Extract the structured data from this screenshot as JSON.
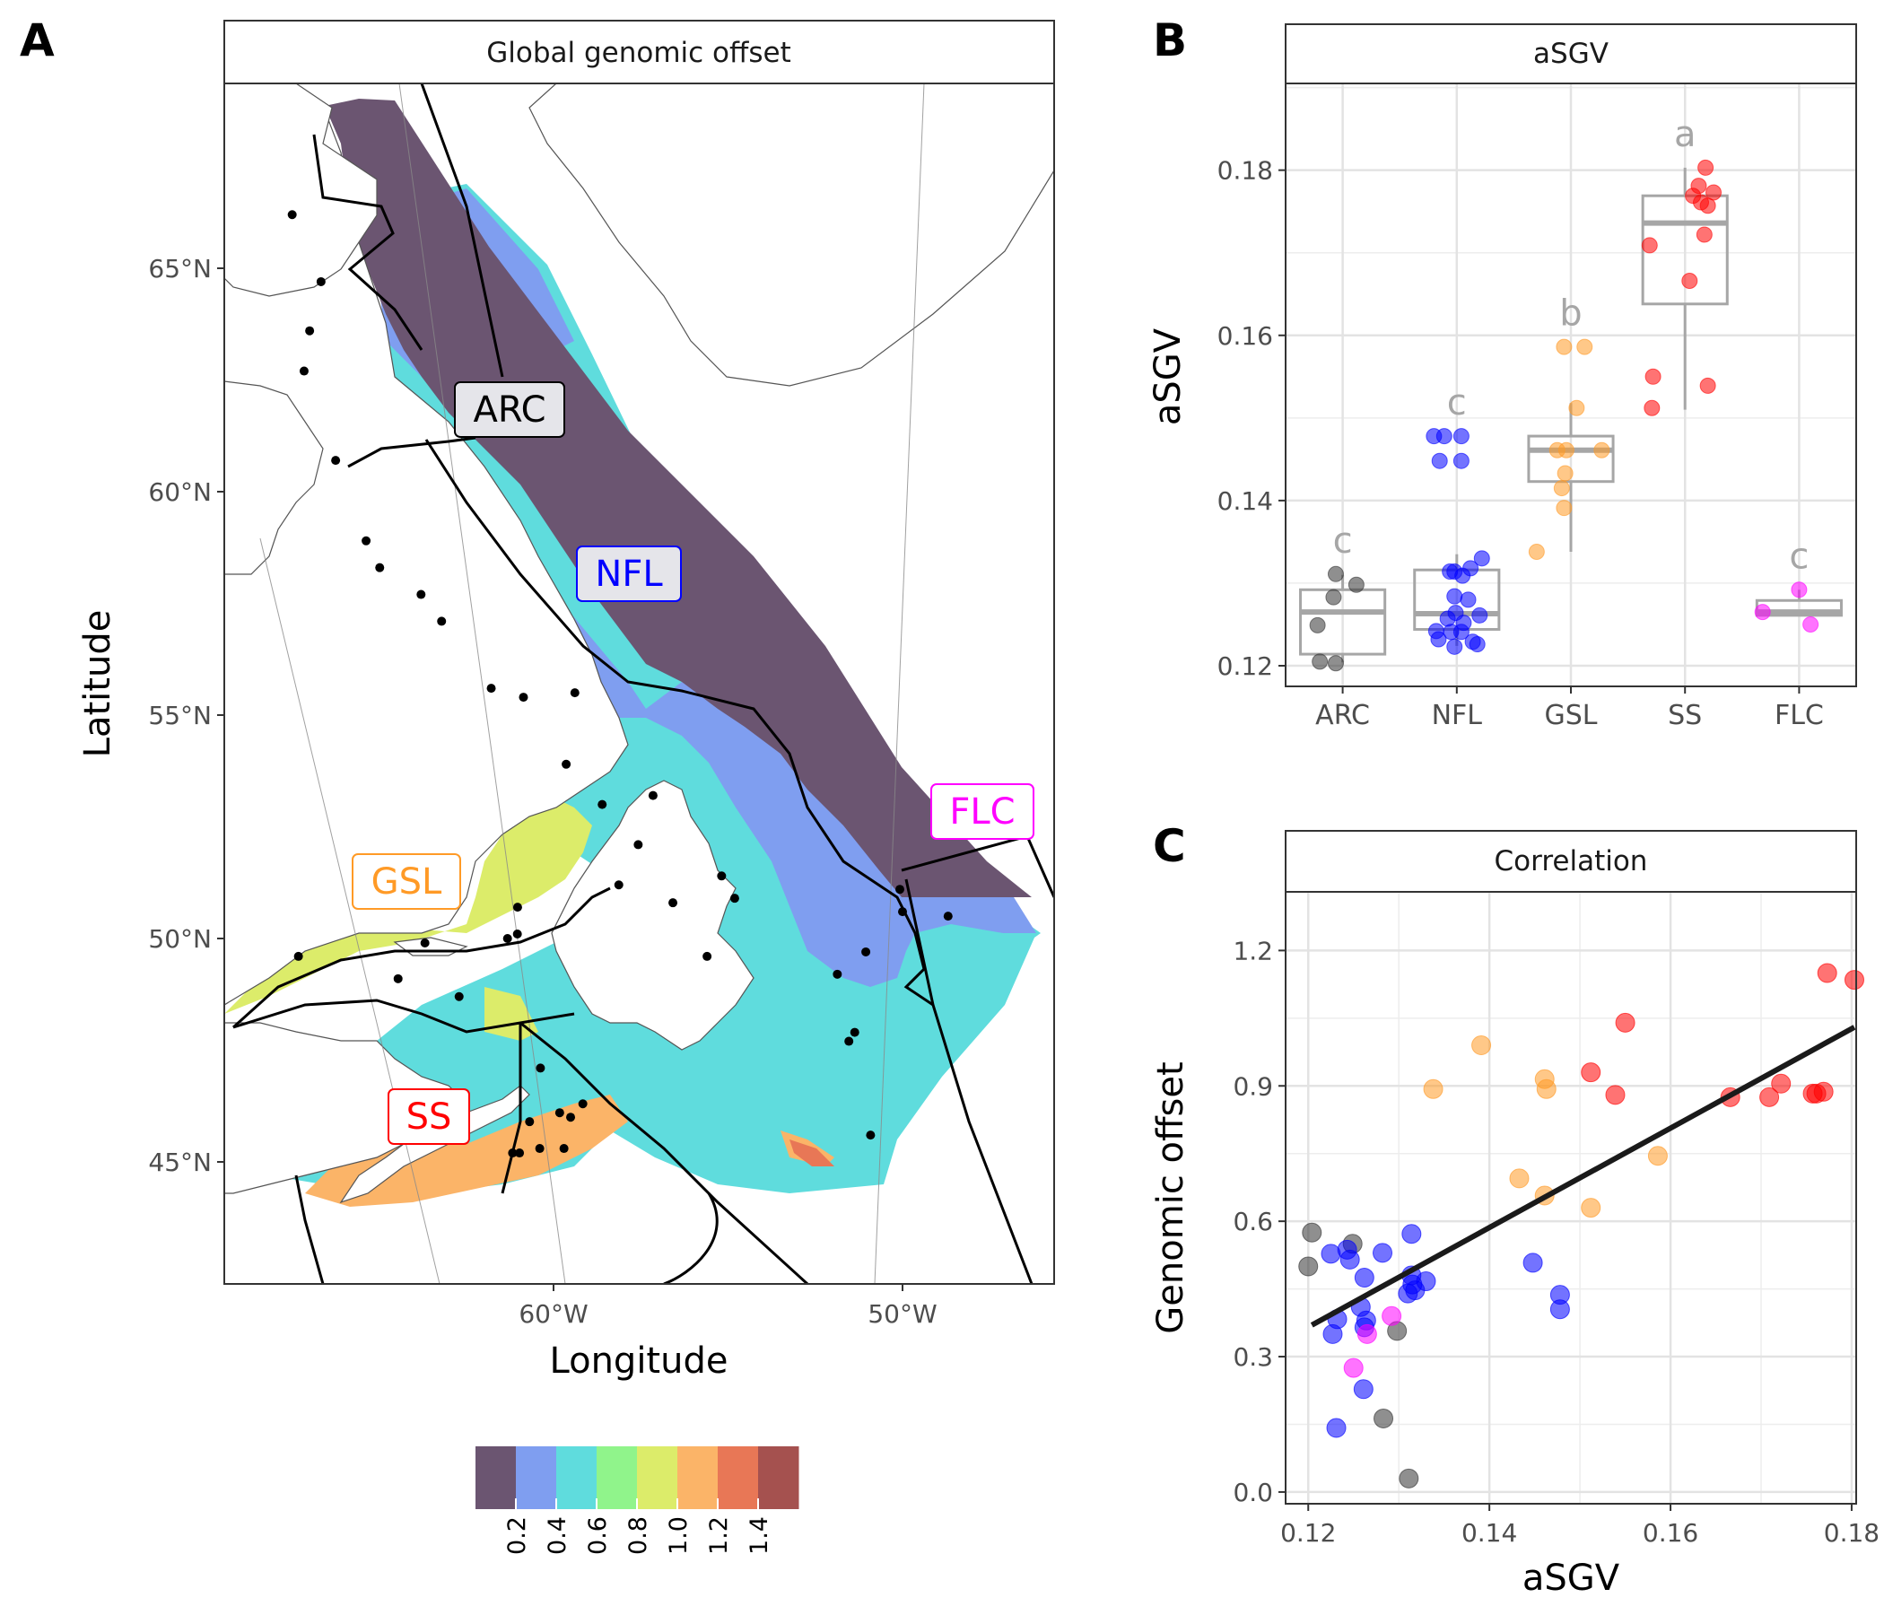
{
  "panel_letters": {
    "a": "A",
    "b": "B",
    "c": "C"
  },
  "colors": {
    "ARC": "#333333",
    "NFL": "#0000ff",
    "GSL": "#ff9a26",
    "SS": "#ff0000",
    "FLC": "#ff00ff",
    "box": "#a6a6a6",
    "ocean_classes": [
      "#6b5571",
      "#7f9ef0",
      "#5fdcdd",
      "#90f48b",
      "#dcec6a",
      "#fbb468",
      "#e87756",
      "#a5514f"
    ]
  },
  "chart_data": [
    {
      "type": "heatmap",
      "panel": "A",
      "title": "Global genomic offset",
      "xlabel": "Longitude",
      "ylabel": "Latitude",
      "xticks": [
        "60°W",
        "50°W"
      ],
      "yticks": [
        "65°N",
        "60°N",
        "55°N",
        "50°N",
        "45°N"
      ],
      "xlim_deg": [
        -69.3,
        -45.8
      ],
      "ylim_deg": [
        42.4,
        69.8
      ],
      "regions": [
        "ARC",
        "NFL",
        "GSL",
        "SS",
        "FLC"
      ],
      "colorbar": {
        "ticks": [
          "0.2",
          "0.4",
          "0.6",
          "0.8",
          "1.0",
          "1.2",
          "1.4"
        ],
        "range": [
          0,
          1.6
        ]
      },
      "sampling_sites_lonlat": [
        [
          -64.2,
          66.2
        ],
        [
          -63.6,
          64.7
        ],
        [
          -64.1,
          63.6
        ],
        [
          -64.4,
          62.7
        ],
        [
          -67.8,
          61.4
        ],
        [
          -67.2,
          60.8
        ],
        [
          -63.8,
          60.7
        ],
        [
          -63.2,
          58.9
        ],
        [
          -62.9,
          58.3
        ],
        [
          -61.8,
          57.7
        ],
        [
          -61.3,
          57.1
        ],
        [
          -60.1,
          55.6
        ],
        [
          -59.2,
          55.4
        ],
        [
          -57.7,
          55.5
        ],
        [
          -58.2,
          53.9
        ],
        [
          -57.3,
          53.0
        ],
        [
          -55.8,
          53.2
        ],
        [
          -56.4,
          52.1
        ],
        [
          -57.1,
          51.2
        ],
        [
          -55.6,
          50.8
        ],
        [
          -54.1,
          51.4
        ],
        [
          -53.8,
          50.9
        ],
        [
          -54.8,
          49.6
        ],
        [
          -50.2,
          49.7
        ],
        [
          -49.0,
          51.1
        ],
        [
          -49.0,
          50.6
        ],
        [
          -47.7,
          50.5
        ],
        [
          -60.1,
          50.7
        ],
        [
          -60.2,
          50.1
        ],
        [
          -60.5,
          50.0
        ],
        [
          -62.9,
          49.9
        ],
        [
          -66.6,
          49.6
        ],
        [
          -63.8,
          49.1
        ],
        [
          -62.1,
          48.7
        ],
        [
          -60.0,
          47.1
        ],
        [
          -59.6,
          46.1
        ],
        [
          -58.9,
          46.3
        ],
        [
          -59.3,
          46.0
        ],
        [
          -60.5,
          45.9
        ],
        [
          -60.9,
          45.2
        ],
        [
          -61.1,
          45.2
        ],
        [
          -60.3,
          45.3
        ],
        [
          -59.6,
          45.3
        ],
        [
          -50.7,
          45.6
        ],
        [
          -51.0,
          47.7
        ],
        [
          -50.8,
          47.9
        ],
        [
          -51.1,
          49.2
        ]
      ]
    },
    {
      "type": "box",
      "panel": "B",
      "title": "aSGV",
      "xlabel": "",
      "ylabel": "aSGV",
      "categories": [
        "ARC",
        "NFL",
        "GSL",
        "SS",
        "FLC"
      ],
      "letters": [
        "c",
        "c",
        "b",
        "a",
        "c"
      ],
      "ylim": [
        0.1175,
        0.1905
      ],
      "yticks": [
        0.12,
        0.14,
        0.16,
        0.18
      ],
      "boxes": [
        {
          "q1": 0.1214,
          "median": 0.1265,
          "q3": 0.1292,
          "wlo": 0.1204,
          "whi": 0.131
        },
        {
          "q1": 0.1244,
          "median": 0.1263,
          "q3": 0.1316,
          "wlo": 0.1224,
          "whi": 0.1335
        },
        {
          "q1": 0.1423,
          "median": 0.1461,
          "q3": 0.1478,
          "wlo": 0.1338,
          "whi": 0.1518
        },
        {
          "q1": 0.1638,
          "median": 0.1736,
          "q3": 0.1769,
          "wlo": 0.151,
          "whi": 0.1803
        },
        {
          "q1": 0.1261,
          "median": 0.1265,
          "q3": 0.1279,
          "wlo": 0.1261,
          "whi": 0.1292
        }
      ],
      "points": [
        {
          "c": "ARC",
          "dx": -0.06,
          "y": 0.1311
        },
        {
          "c": "ARC",
          "dx": 0.12,
          "y": 0.1298
        },
        {
          "c": "ARC",
          "dx": -0.08,
          "y": 0.1283
        },
        {
          "c": "ARC",
          "dx": -0.22,
          "y": 0.1249
        },
        {
          "c": "ARC",
          "dx": -0.2,
          "y": 0.1205
        },
        {
          "c": "ARC",
          "dx": -0.06,
          "y": 0.1203
        },
        {
          "c": "NFL",
          "dx": -0.2,
          "y": 0.1478
        },
        {
          "c": "NFL",
          "dx": -0.11,
          "y": 0.1478
        },
        {
          "c": "NFL",
          "dx": 0.04,
          "y": 0.1478
        },
        {
          "c": "NFL",
          "dx": -0.15,
          "y": 0.1448
        },
        {
          "c": "NFL",
          "dx": 0.04,
          "y": 0.1448
        },
        {
          "c": "NFL",
          "dx": 0.22,
          "y": 0.133
        },
        {
          "c": "NFL",
          "dx": 0.12,
          "y": 0.1318
        },
        {
          "c": "NFL",
          "dx": -0.06,
          "y": 0.1314
        },
        {
          "c": "NFL",
          "dx": -0.02,
          "y": 0.1314
        },
        {
          "c": "NFL",
          "dx": 0.05,
          "y": 0.1309
        },
        {
          "c": "NFL",
          "dx": -0.02,
          "y": 0.1284
        },
        {
          "c": "NFL",
          "dx": 0.1,
          "y": 0.128
        },
        {
          "c": "NFL",
          "dx": -0.01,
          "y": 0.1264
        },
        {
          "c": "NFL",
          "dx": 0.2,
          "y": 0.1261
        },
        {
          "c": "NFL",
          "dx": -0.08,
          "y": 0.1257
        },
        {
          "c": "NFL",
          "dx": 0.06,
          "y": 0.1252
        },
        {
          "c": "NFL",
          "dx": -0.18,
          "y": 0.1242
        },
        {
          "c": "NFL",
          "dx": -0.05,
          "y": 0.1241
        },
        {
          "c": "NFL",
          "dx": 0.04,
          "y": 0.1241
        },
        {
          "c": "NFL",
          "dx": -0.16,
          "y": 0.1232
        },
        {
          "c": "NFL",
          "dx": 0.14,
          "y": 0.1229
        },
        {
          "c": "NFL",
          "dx": 0.18,
          "y": 0.1226
        },
        {
          "c": "NFL",
          "dx": -0.02,
          "y": 0.1223
        },
        {
          "c": "GSL",
          "dx": -0.06,
          "y": 0.1586
        },
        {
          "c": "GSL",
          "dx": 0.12,
          "y": 0.1586
        },
        {
          "c": "GSL",
          "dx": 0.05,
          "y": 0.1512
        },
        {
          "c": "GSL",
          "dx": -0.12,
          "y": 0.1461
        },
        {
          "c": "GSL",
          "dx": -0.04,
          "y": 0.1461
        },
        {
          "c": "GSL",
          "dx": 0.27,
          "y": 0.1461
        },
        {
          "c": "GSL",
          "dx": -0.05,
          "y": 0.1433
        },
        {
          "c": "GSL",
          "dx": -0.08,
          "y": 0.1415
        },
        {
          "c": "GSL",
          "dx": -0.06,
          "y": 0.1391
        },
        {
          "c": "GSL",
          "dx": -0.3,
          "y": 0.1338
        },
        {
          "c": "SS",
          "dx": 0.18,
          "y": 0.1803
        },
        {
          "c": "SS",
          "dx": 0.12,
          "y": 0.1781
        },
        {
          "c": "SS",
          "dx": 0.25,
          "y": 0.1773
        },
        {
          "c": "SS",
          "dx": 0.07,
          "y": 0.1769
        },
        {
          "c": "SS",
          "dx": 0.14,
          "y": 0.1761
        },
        {
          "c": "SS",
          "dx": 0.2,
          "y": 0.1757
        },
        {
          "c": "SS",
          "dx": 0.17,
          "y": 0.1722
        },
        {
          "c": "SS",
          "dx": -0.31,
          "y": 0.1709
        },
        {
          "c": "SS",
          "dx": 0.04,
          "y": 0.1666
        },
        {
          "c": "SS",
          "dx": -0.28,
          "y": 0.155
        },
        {
          "c": "SS",
          "dx": 0.2,
          "y": 0.1539
        },
        {
          "c": "SS",
          "dx": -0.29,
          "y": 0.1512
        },
        {
          "c": "FLC",
          "dx": 0.0,
          "y": 0.1292
        },
        {
          "c": "FLC",
          "dx": -0.32,
          "y": 0.1265
        },
        {
          "c": "FLC",
          "dx": 0.1,
          "y": 0.125
        }
      ]
    },
    {
      "type": "scatter",
      "panel": "C",
      "title": "Correlation",
      "xlabel": "aSGV",
      "ylabel": "Genomic offset",
      "xlim": [
        0.1175,
        0.1805
      ],
      "ylim": [
        -0.026,
        1.33
      ],
      "xticks": [
        0.12,
        0.14,
        0.16,
        0.18
      ],
      "yticks": [
        0.0,
        0.3,
        0.6,
        0.9,
        1.2
      ],
      "regression": {
        "x1": 0.1204,
        "y1": 0.37,
        "x2": 0.1803,
        "y2": 1.03
      },
      "points": [
        {
          "g": "ARC",
          "x": 0.1204,
          "y": 0.575
        },
        {
          "g": "ARC",
          "x": 0.12,
          "y": 0.5
        },
        {
          "g": "ARC",
          "x": 0.1249,
          "y": 0.55
        },
        {
          "g": "ARC",
          "x": 0.1298,
          "y": 0.357
        },
        {
          "g": "ARC",
          "x": 0.1283,
          "y": 0.163
        },
        {
          "g": "ARC",
          "x": 0.1311,
          "y": 0.03
        },
        {
          "g": "NFL",
          "x": 0.1225,
          "y": 0.528
        },
        {
          "g": "NFL",
          "x": 0.1243,
          "y": 0.537
        },
        {
          "g": "NFL",
          "x": 0.1246,
          "y": 0.515
        },
        {
          "g": "NFL",
          "x": 0.1282,
          "y": 0.53
        },
        {
          "g": "NFL",
          "x": 0.1314,
          "y": 0.572
        },
        {
          "g": "NFL",
          "x": 0.1262,
          "y": 0.475
        },
        {
          "g": "NFL",
          "x": 0.1314,
          "y": 0.48
        },
        {
          "g": "NFL",
          "x": 0.1315,
          "y": 0.46
        },
        {
          "g": "NFL",
          "x": 0.133,
          "y": 0.467
        },
        {
          "g": "NFL",
          "x": 0.131,
          "y": 0.44
        },
        {
          "g": "NFL",
          "x": 0.1318,
          "y": 0.447
        },
        {
          "g": "NFL",
          "x": 0.1232,
          "y": 0.383
        },
        {
          "g": "NFL",
          "x": 0.1258,
          "y": 0.41
        },
        {
          "g": "NFL",
          "x": 0.1264,
          "y": 0.38
        },
        {
          "g": "NFL",
          "x": 0.1262,
          "y": 0.365
        },
        {
          "g": "NFL",
          "x": 0.1227,
          "y": 0.35
        },
        {
          "g": "NFL",
          "x": 0.1261,
          "y": 0.228
        },
        {
          "g": "NFL",
          "x": 0.1231,
          "y": 0.142
        },
        {
          "g": "NFL",
          "x": 0.1448,
          "y": 0.508
        },
        {
          "g": "NFL",
          "x": 0.1478,
          "y": 0.437
        },
        {
          "g": "NFL",
          "x": 0.1478,
          "y": 0.405
        },
        {
          "g": "GSL",
          "x": 0.1391,
          "y": 0.99
        },
        {
          "g": "GSL",
          "x": 0.1461,
          "y": 0.915
        },
        {
          "g": "GSL",
          "x": 0.1463,
          "y": 0.893
        },
        {
          "g": "GSL",
          "x": 0.1338,
          "y": 0.893
        },
        {
          "g": "GSL",
          "x": 0.1586,
          "y": 0.745
        },
        {
          "g": "GSL",
          "x": 0.1433,
          "y": 0.695
        },
        {
          "g": "GSL",
          "x": 0.1461,
          "y": 0.657
        },
        {
          "g": "GSL",
          "x": 0.1512,
          "y": 0.63
        },
        {
          "g": "SS",
          "x": 0.155,
          "y": 1.04
        },
        {
          "g": "SS",
          "x": 0.1512,
          "y": 0.93
        },
        {
          "g": "SS",
          "x": 0.1539,
          "y": 0.88
        },
        {
          "g": "SS",
          "x": 0.1666,
          "y": 0.875
        },
        {
          "g": "SS",
          "x": 0.1709,
          "y": 0.875
        },
        {
          "g": "SS",
          "x": 0.1722,
          "y": 0.905
        },
        {
          "g": "SS",
          "x": 0.1773,
          "y": 1.15
        },
        {
          "g": "SS",
          "x": 0.1803,
          "y": 1.135
        },
        {
          "g": "SS",
          "x": 0.1761,
          "y": 0.883
        },
        {
          "g": "SS",
          "x": 0.1769,
          "y": 0.887
        },
        {
          "g": "SS",
          "x": 0.1757,
          "y": 0.883
        },
        {
          "g": "FLC",
          "x": 0.1292,
          "y": 0.39
        },
        {
          "g": "FLC",
          "x": 0.1265,
          "y": 0.35
        },
        {
          "g": "FLC",
          "x": 0.125,
          "y": 0.275
        }
      ]
    }
  ]
}
